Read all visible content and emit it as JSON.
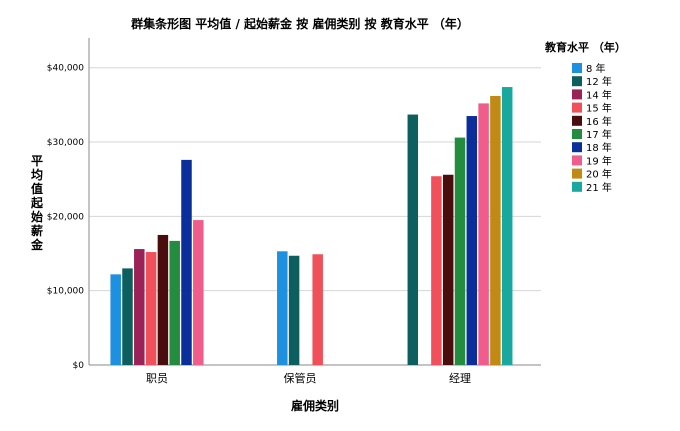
{
  "chart_data": {
    "type": "bar",
    "title": "群集条形图 平均值 / 起始薪金 按 雇佣类别 按 教育水平 （年）",
    "xlabel": "雇佣类别",
    "ylabel": "平均值起始薪金",
    "ylim": [
      0,
      44000
    ],
    "yticks": [
      0,
      10000,
      20000,
      30000,
      40000
    ],
    "ytick_labels": [
      "$0",
      "$10,000",
      "$20,000",
      "$30,000",
      "$40,000"
    ],
    "grid": true,
    "legend_position": "right",
    "legend_title": "教育水平 （年）",
    "categories": [
      "职员",
      "保管员",
      "经理"
    ],
    "series": [
      {
        "name": "8 年",
        "color": "#1e90e0",
        "values": [
          12200,
          15300,
          null
        ]
      },
      {
        "name": "12 年",
        "color": "#0d5e5e",
        "values": [
          13000,
          14700,
          33700
        ]
      },
      {
        "name": "14 年",
        "color": "#9b2257",
        "values": [
          15600,
          null,
          null
        ]
      },
      {
        "name": "15 年",
        "color": "#f0505a",
        "values": [
          15200,
          14900,
          25400
        ]
      },
      {
        "name": "16 年",
        "color": "#4a0d0d",
        "values": [
          17500,
          null,
          25600
        ]
      },
      {
        "name": "17 年",
        "color": "#238c3e",
        "values": [
          16700,
          null,
          30600
        ]
      },
      {
        "name": "18 年",
        "color": "#0a2e9a",
        "values": [
          27600,
          null,
          33500
        ]
      },
      {
        "name": "19 年",
        "color": "#f05c8c",
        "values": [
          19500,
          null,
          35200
        ]
      },
      {
        "name": "20 年",
        "color": "#c08a14",
        "values": [
          null,
          null,
          36200
        ]
      },
      {
        "name": "21 年",
        "color": "#18a8a0",
        "values": [
          null,
          null,
          37400
        ]
      }
    ]
  }
}
